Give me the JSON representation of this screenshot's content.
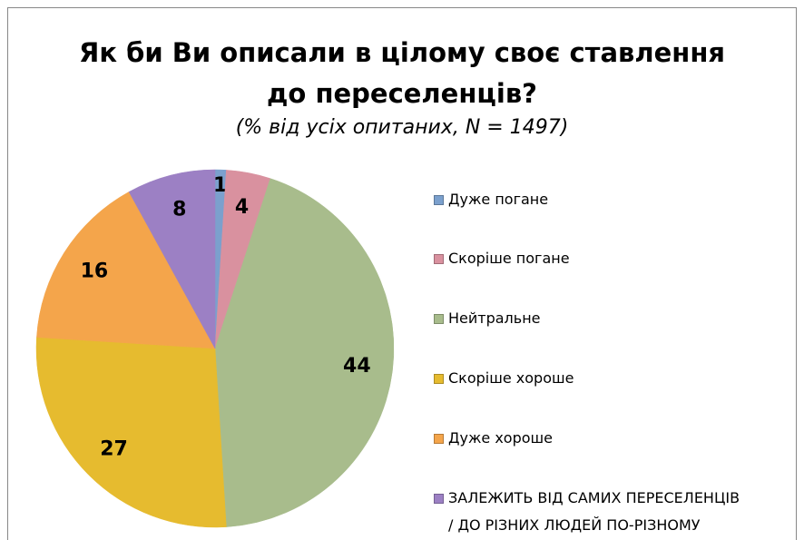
{
  "chart_data": {
    "type": "pie",
    "title": "Як би Ви описали в цілому своє ставлення\nдо переселенців?",
    "subtitle": "(% від усіх опитаних, N = 1497)",
    "categories": [
      "Дуже погане",
      "Скоріше погане",
      "Нейтральне",
      "Скоріше хороше",
      "Дуже хороше",
      "ЗАЛЕЖИТЬ ВІД САМИХ ПЕРЕСЕЛЕНЦІВ\n/ ДО РІЗНИХ ЛЮДЕЙ ПО-РІЗНОМУ"
    ],
    "values": [
      1,
      4,
      44,
      27,
      16,
      8
    ],
    "colors": [
      "#7ba0cd",
      "#d9919f",
      "#a8bc8c",
      "#e6bb2f",
      "#f4a54b",
      "#9c80c4"
    ],
    "legend": "right"
  }
}
